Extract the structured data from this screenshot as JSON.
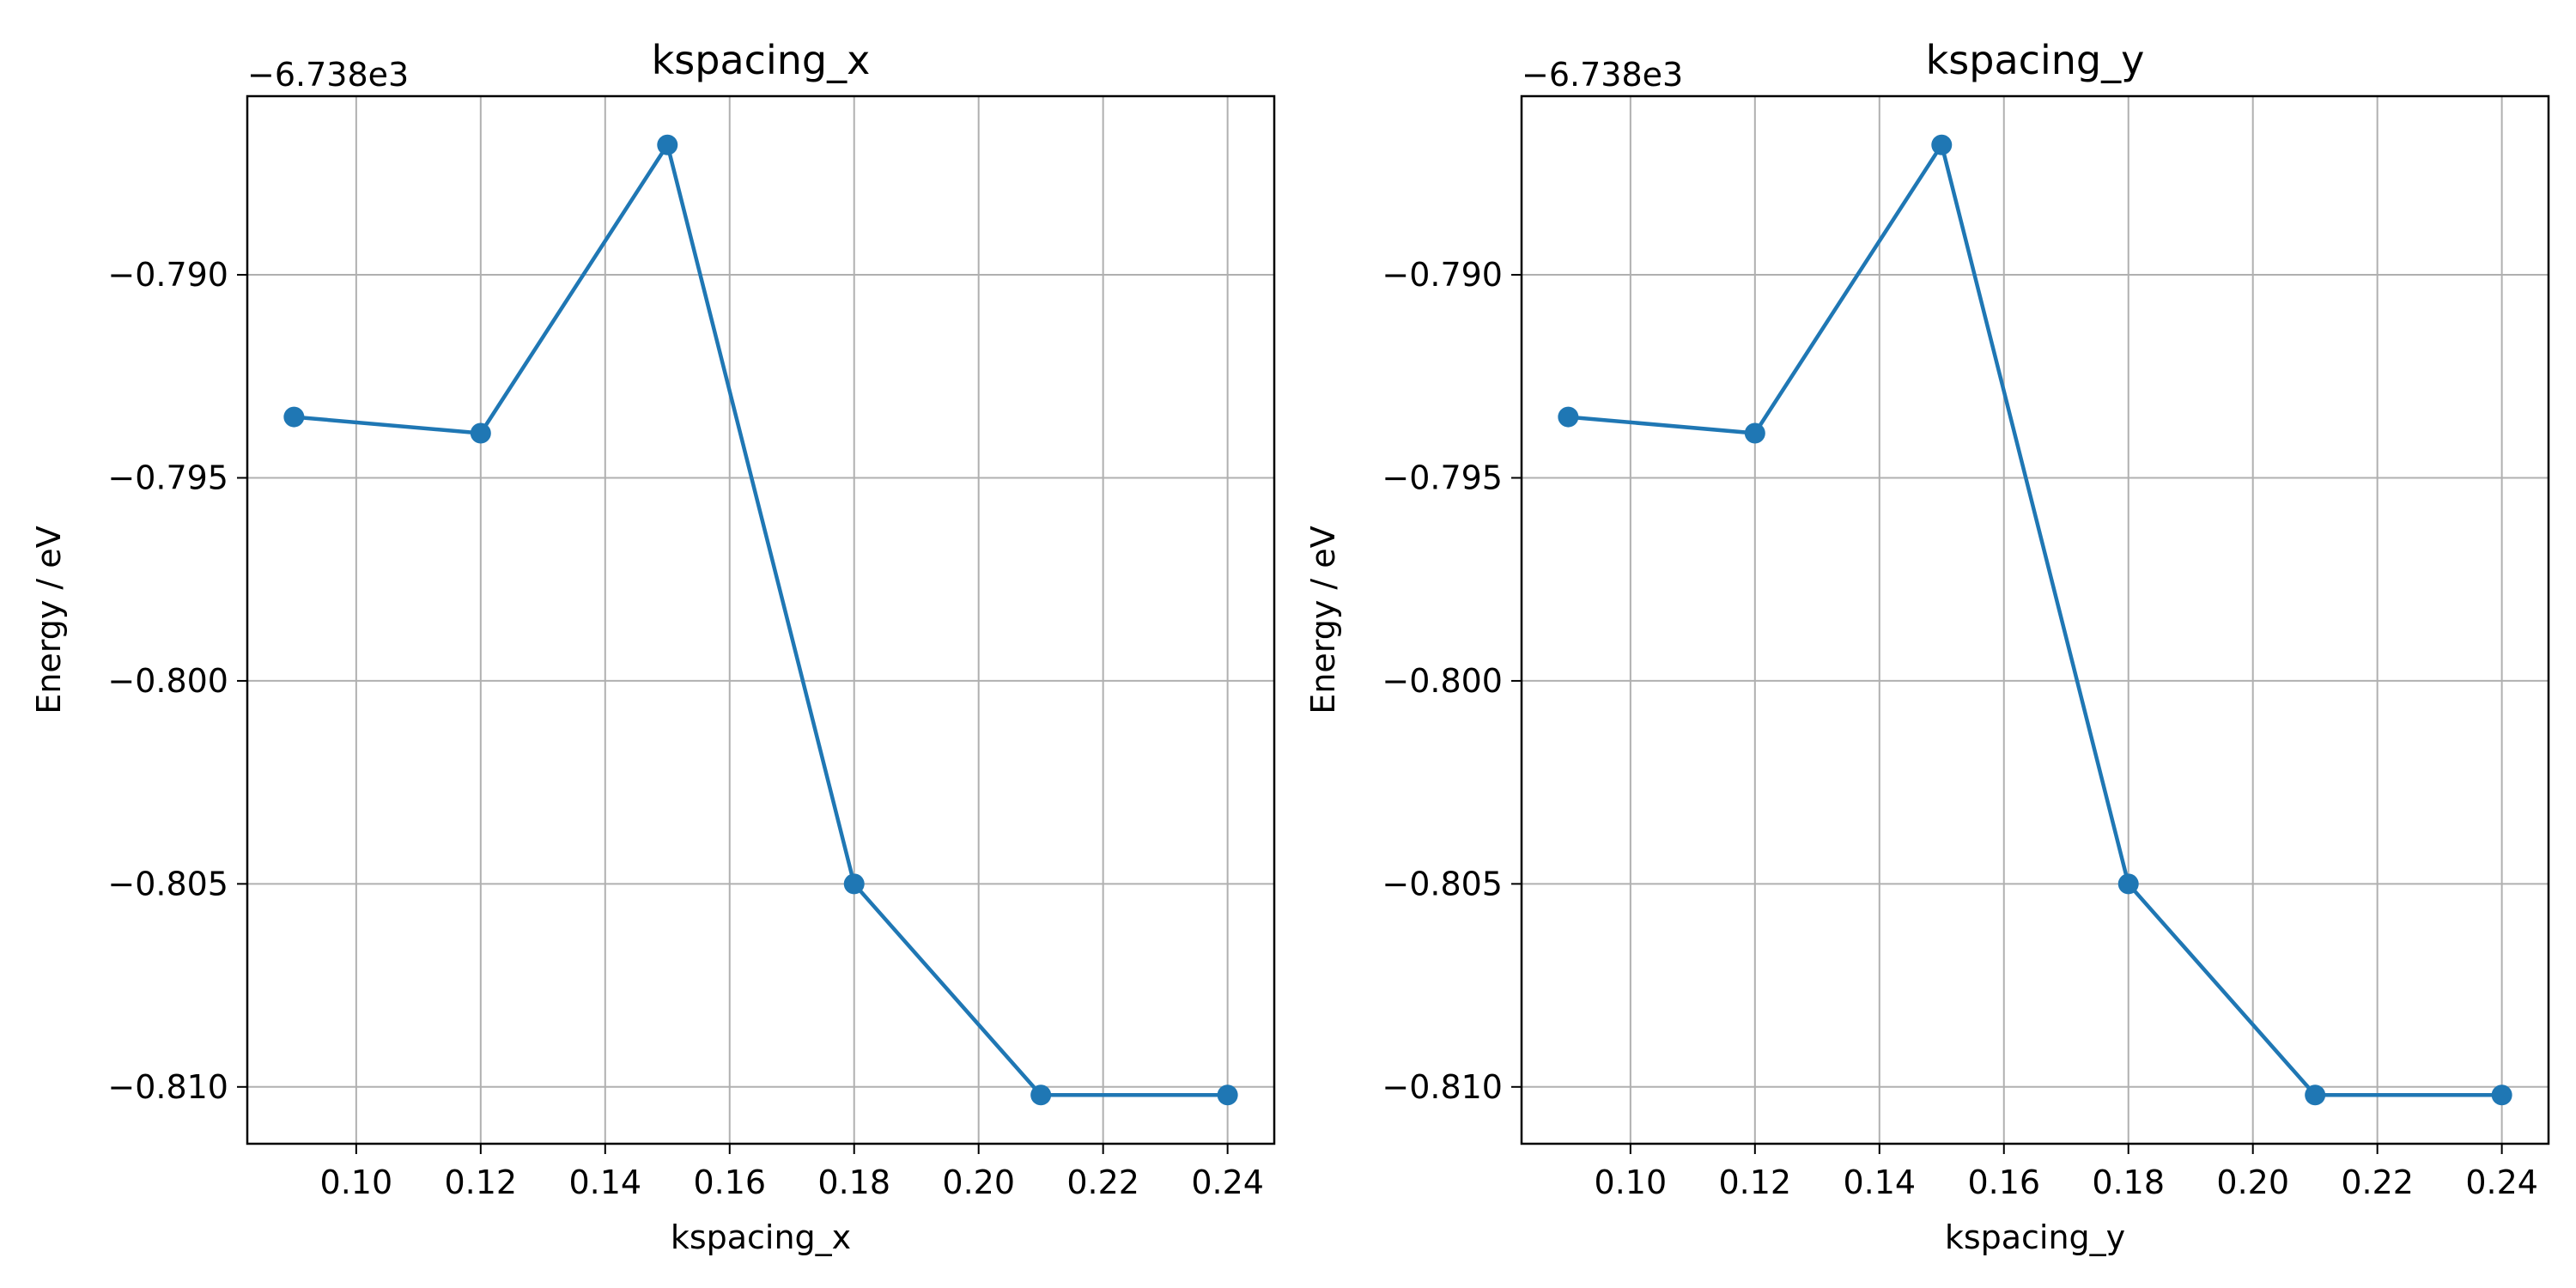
{
  "chart_data": [
    {
      "type": "line",
      "title": "kspacing_x",
      "xlabel": "kspacing_x",
      "ylabel": "Energy / eV",
      "offset_text": "−6.738e3",
      "x": [
        0.09,
        0.12,
        0.15,
        0.18,
        0.21,
        0.24
      ],
      "series": [
        {
          "values": [
            -0.7935,
            -0.7939,
            -0.7868,
            -0.805,
            -0.8102,
            -0.8102
          ],
          "color": "#1f77b4",
          "marker": "circle"
        }
      ],
      "xlim": [
        0.0825,
        0.2475
      ],
      "ylim": [
        -0.8114,
        -0.7856
      ],
      "xticks": [
        0.1,
        0.12,
        0.14,
        0.16,
        0.18,
        0.2,
        0.22,
        0.24
      ],
      "xtick_labels": [
        "0.10",
        "0.12",
        "0.14",
        "0.16",
        "0.18",
        "0.20",
        "0.22",
        "0.24"
      ],
      "yticks": [
        -0.79,
        -0.795,
        -0.8,
        -0.805,
        -0.81
      ],
      "ytick_labels": [
        "−0.790",
        "−0.795",
        "−0.800",
        "−0.805",
        "−0.810"
      ],
      "grid": true
    },
    {
      "type": "line",
      "title": "kspacing_y",
      "xlabel": "kspacing_y",
      "ylabel": "Energy / eV",
      "offset_text": "−6.738e3",
      "x": [
        0.09,
        0.12,
        0.15,
        0.18,
        0.21,
        0.24
      ],
      "series": [
        {
          "values": [
            -0.7935,
            -0.7939,
            -0.7868,
            -0.805,
            -0.8102,
            -0.8102
          ],
          "color": "#1f77b4",
          "marker": "circle"
        }
      ],
      "xlim": [
        0.0825,
        0.2475
      ],
      "ylim": [
        -0.8114,
        -0.7856
      ],
      "xticks": [
        0.1,
        0.12,
        0.14,
        0.16,
        0.18,
        0.2,
        0.22,
        0.24
      ],
      "xtick_labels": [
        "0.10",
        "0.12",
        "0.14",
        "0.16",
        "0.18",
        "0.20",
        "0.22",
        "0.24"
      ],
      "yticks": [
        -0.79,
        -0.795,
        -0.8,
        -0.805,
        -0.81
      ],
      "ytick_labels": [
        "−0.790",
        "−0.795",
        "−0.800",
        "−0.805",
        "−0.810"
      ],
      "grid": true
    }
  ]
}
